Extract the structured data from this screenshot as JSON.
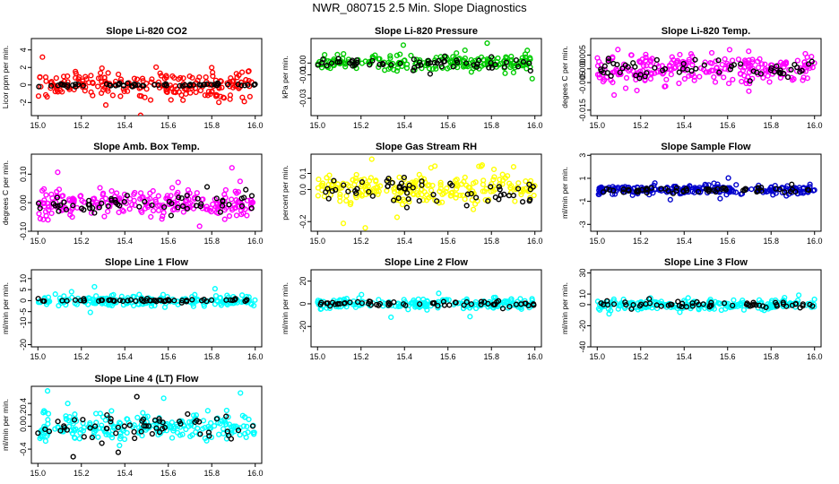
{
  "title": "NWR_080715  2.5 Min. Slope Diagnostics",
  "chart_data": [
    {
      "type": "scatter",
      "title": "Slope Li-820 CO2",
      "ylabel": "Licor ppm per min.",
      "xlim": [
        14.97,
        16.03
      ],
      "ylim": [
        -3.5,
        5.3
      ],
      "xticks": [
        "15.0",
        "15.2",
        "15.4",
        "15.6",
        "15.8",
        "16.0"
      ],
      "yticks": [
        "-2",
        "0",
        "2",
        "4"
      ],
      "ytick_values": [
        -2,
        0,
        2,
        4
      ],
      "series": [
        {
          "color": "#ff0000",
          "spread": 1.3,
          "n": 220
        },
        {
          "color": "#000000",
          "spread": 0.15,
          "n": 60
        }
      ]
    },
    {
      "type": "scatter",
      "title": "Slope Li-820 Pressure",
      "ylabel": "kPa per min.",
      "xlim": [
        14.97,
        16.03
      ],
      "ylim": [
        -0.045,
        0.021
      ],
      "xticks": [
        "15.0",
        "15.2",
        "15.4",
        "15.6",
        "15.8",
        "16.0"
      ],
      "yticks": [
        "-0.03",
        "-0.01",
        "0.00"
      ],
      "ytick_values": [
        -0.03,
        -0.01,
        0.0
      ],
      "series": [
        {
          "color": "#00cc00",
          "spread": 0.006,
          "n": 190
        },
        {
          "color": "#000000",
          "spread": 0.004,
          "n": 60
        }
      ]
    },
    {
      "type": "scatter",
      "title": "Slope Li-820 Temp.",
      "ylabel": "degees C per min.",
      "xlim": [
        14.97,
        16.03
      ],
      "ylim": [
        -0.017,
        0.011
      ],
      "xticks": [
        "15.0",
        "15.2",
        "15.4",
        "15.6",
        "15.8",
        "16.0"
      ],
      "yticks": [
        "-0.015",
        "-0.005",
        "0.000",
        "0.005"
      ],
      "ytick_values": [
        -0.015,
        -0.005,
        0.0,
        0.005
      ],
      "series": [
        {
          "color": "#ff00ff",
          "spread": 0.004,
          "n": 240
        },
        {
          "color": "#000000",
          "spread": 0.003,
          "n": 60
        }
      ]
    },
    {
      "type": "scatter",
      "title": "Slope Amb. Box Temp.",
      "ylabel": "degrees C per min.",
      "xlim": [
        14.97,
        16.03
      ],
      "ylim": [
        -0.1,
        0.17
      ],
      "xticks": [
        "15.0",
        "15.2",
        "15.4",
        "15.6",
        "15.8",
        "16.0"
      ],
      "yticks": [
        "-0.10",
        "0.00",
        "0.10"
      ],
      "ytick_values": [
        -0.1,
        0.0,
        0.1
      ],
      "series": [
        {
          "color": "#ff00ff",
          "spread": 0.04,
          "n": 240
        },
        {
          "color": "#000000",
          "spread": 0.025,
          "n": 60
        }
      ]
    },
    {
      "type": "scatter",
      "title": "Slope Gas Stream RH",
      "ylabel": "percent per min.",
      "xlim": [
        14.97,
        16.03
      ],
      "ylim": [
        -0.26,
        0.22
      ],
      "xticks": [
        "15.0",
        "15.2",
        "15.4",
        "15.6",
        "15.8",
        "16.0"
      ],
      "yticks": [
        "-0.2",
        "0.0",
        "0.1"
      ],
      "ytick_values": [
        -0.2,
        0.0,
        0.1
      ],
      "series": [
        {
          "color": "#ffff00",
          "spread": 0.08,
          "n": 240
        },
        {
          "color": "#000000",
          "spread": 0.06,
          "n": 60
        }
      ]
    },
    {
      "type": "scatter",
      "title": "Slope Sample Flow",
      "ylabel": "ml/min per min.",
      "xlim": [
        14.97,
        16.03
      ],
      "ylim": [
        -3.6,
        3.1
      ],
      "xticks": [
        "15.0",
        "15.2",
        "15.4",
        "15.6",
        "15.8",
        "16.0"
      ],
      "yticks": [
        "-3",
        "-1",
        "1",
        "3"
      ],
      "ytick_values": [
        -3,
        -1,
        1,
        3
      ],
      "series": [
        {
          "color": "#0000cc",
          "spread": 0.35,
          "n": 230
        },
        {
          "color": "#000000",
          "spread": 0.2,
          "n": 60
        }
      ]
    },
    {
      "type": "scatter",
      "title": "Slope Line 1 Flow",
      "ylabel": "ml/min per min.",
      "xlim": [
        14.97,
        16.03
      ],
      "ylim": [
        -21,
        14
      ],
      "xticks": [
        "15.0",
        "15.2",
        "15.4",
        "15.6",
        "15.8",
        "16.0"
      ],
      "yticks": [
        "-20",
        "-10",
        "-5",
        "0",
        "5",
        "10"
      ],
      "ytick_values": [
        -20,
        -10,
        -5,
        0,
        5,
        10
      ],
      "series": [
        {
          "color": "#00ffff",
          "spread": 1.8,
          "n": 230
        },
        {
          "color": "#000000",
          "spread": 0.5,
          "n": 60
        }
      ]
    },
    {
      "type": "scatter",
      "title": "Slope Line 2 Flow",
      "ylabel": "ml/min per min.",
      "xlim": [
        14.97,
        16.03
      ],
      "ylim": [
        -38,
        30
      ],
      "xticks": [
        "15.0",
        "15.2",
        "15.4",
        "15.6",
        "15.8",
        "16.0"
      ],
      "yticks": [
        "-20",
        "0",
        "20"
      ],
      "ytick_values": [
        -20,
        0,
        20
      ],
      "series": [
        {
          "color": "#00ffff",
          "spread": 3.5,
          "n": 200
        },
        {
          "color": "#000000",
          "spread": 2.0,
          "n": 60
        }
      ]
    },
    {
      "type": "scatter",
      "title": "Slope Line 3 Flow",
      "ylabel": "ml/min per min.",
      "xlim": [
        14.97,
        16.03
      ],
      "ylim": [
        -40,
        33
      ],
      "xticks": [
        "15.0",
        "15.2",
        "15.4",
        "15.6",
        "15.8",
        "16.0"
      ],
      "yticks": [
        "-40",
        "-20",
        "0",
        "10",
        "30"
      ],
      "ytick_values": [
        -40,
        -20,
        0,
        10,
        30
      ],
      "series": [
        {
          "color": "#00ffff",
          "spread": 4.0,
          "n": 210
        },
        {
          "color": "#000000",
          "spread": 2.5,
          "n": 60
        }
      ]
    },
    {
      "type": "scatter",
      "title": "Slope Line 4 (LT) Flow",
      "ylabel": "ml/min per min.",
      "xlim": [
        14.97,
        16.03
      ],
      "ylim": [
        -0.65,
        0.7
      ],
      "xticks": [
        "15.0",
        "15.2",
        "15.4",
        "15.6",
        "15.8",
        "16.0"
      ],
      "yticks": [
        "-0.4",
        "0.0",
        "0.2",
        "0.4"
      ],
      "ytick_values": [
        -0.4,
        0.0,
        0.2,
        0.4
      ],
      "series": [
        {
          "color": "#00ffff",
          "spread": 0.22,
          "n": 240
        },
        {
          "color": "#000000",
          "spread": 0.2,
          "n": 60
        }
      ]
    }
  ]
}
